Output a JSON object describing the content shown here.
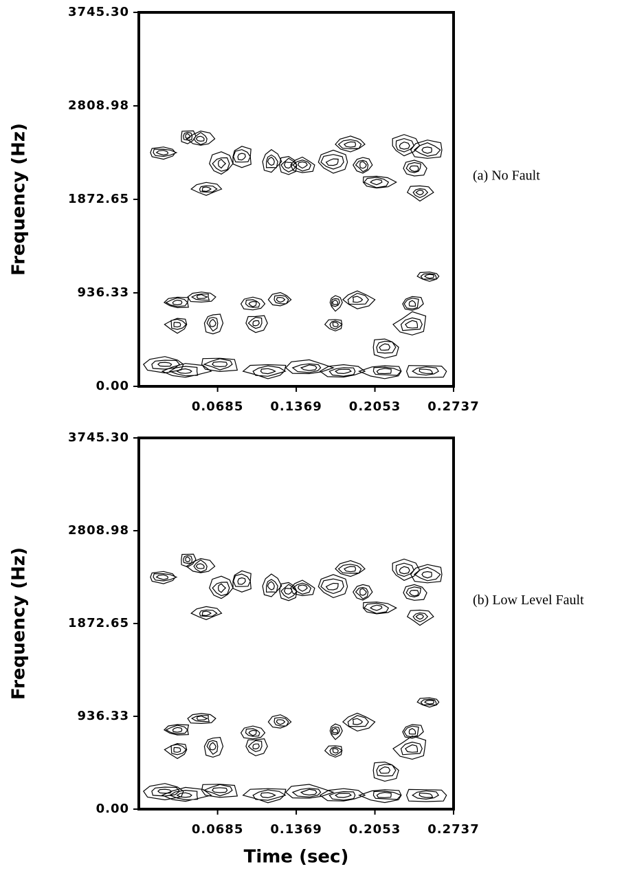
{
  "chart_data": [
    {
      "type": "contour",
      "ylabel": "Frequency (Hz)",
      "annotation": "(a) No Fault",
      "xlim": [
        0,
        0.2737
      ],
      "ylim": [
        0,
        3745.3
      ],
      "xticks": [
        0.0685,
        0.1369,
        0.2053,
        0.2737
      ],
      "yticks": [
        {
          "value": 0,
          "label": "0.00"
        },
        936.33,
        1872.65,
        2808.98,
        {
          "value": 3745.3,
          "label": "3745.30"
        }
      ],
      "color": "#000000",
      "x": [
        0.0215,
        0.0424,
        0.0538,
        0.0717,
        0.0896,
        0.0586,
        0.1153,
        0.1303,
        0.1422,
        0.1691,
        0.1841,
        0.1948,
        0.2068,
        0.2307,
        0.2396,
        0.251,
        0.2444,
        0.0544,
        0.1231,
        0.19,
        0.2528,
        0.0335,
        0.0335,
        0.0645,
        0.1016,
        0.0992,
        0.1709,
        0.1709,
        0.2378,
        0.2378,
        0.2139,
        0.0227,
        0.0406,
        0.0705,
        0.1123,
        0.1482,
        0.1781,
        0.2139,
        0.2498
      ],
      "y": [
        2341,
        2506,
        2479,
        2231,
        2300,
        1976,
        2251,
        2217,
        2217,
        2245,
        2424,
        2217,
        2045,
        2410,
        2183,
        2368,
        1942,
        895,
        868,
        868,
        1102,
        840,
        620,
        633,
        633,
        826,
        840,
        620,
        826,
        620,
        392,
        220,
        151,
        220,
        151,
        186,
        151,
        151,
        151
      ]
    },
    {
      "type": "contour",
      "ylabel": "Frequency (Hz)",
      "xlabel": "Time (sec)",
      "annotation": "(b) Low Level Fault",
      "xlim": [
        0,
        0.2737
      ],
      "ylim": [
        0,
        3745.3
      ],
      "xticks": [
        0.0685,
        0.1369,
        0.2053,
        0.2737
      ],
      "yticks": [
        {
          "value": 0,
          "label": "0.00"
        },
        936.33,
        1872.65,
        2808.98,
        {
          "value": 3745.3,
          "label": "3745.30"
        }
      ],
      "color": "#000000",
      "x": [
        0.0215,
        0.0424,
        0.0538,
        0.0717,
        0.0896,
        0.0586,
        0.1153,
        0.1303,
        0.1422,
        0.1691,
        0.1841,
        0.1948,
        0.2068,
        0.2307,
        0.2396,
        0.251,
        0.2444,
        0.0544,
        0.1231,
        0.19,
        0.2528,
        0.0335,
        0.0335,
        0.0645,
        0.1016,
        0.0992,
        0.1709,
        0.1709,
        0.2378,
        0.2378,
        0.2139,
        0.0227,
        0.0406,
        0.0705,
        0.1123,
        0.1482,
        0.1781,
        0.2139,
        0.2498
      ],
      "y": [
        2341,
        2520,
        2450,
        2231,
        2300,
        1976,
        2251,
        2200,
        2230,
        2245,
        2424,
        2190,
        2030,
        2410,
        2183,
        2368,
        1942,
        915,
        880,
        880,
        1080,
        800,
        600,
        633,
        633,
        770,
        790,
        590,
        780,
        610,
        392,
        180,
        140,
        190,
        140,
        170,
        140,
        140,
        140
      ]
    }
  ]
}
